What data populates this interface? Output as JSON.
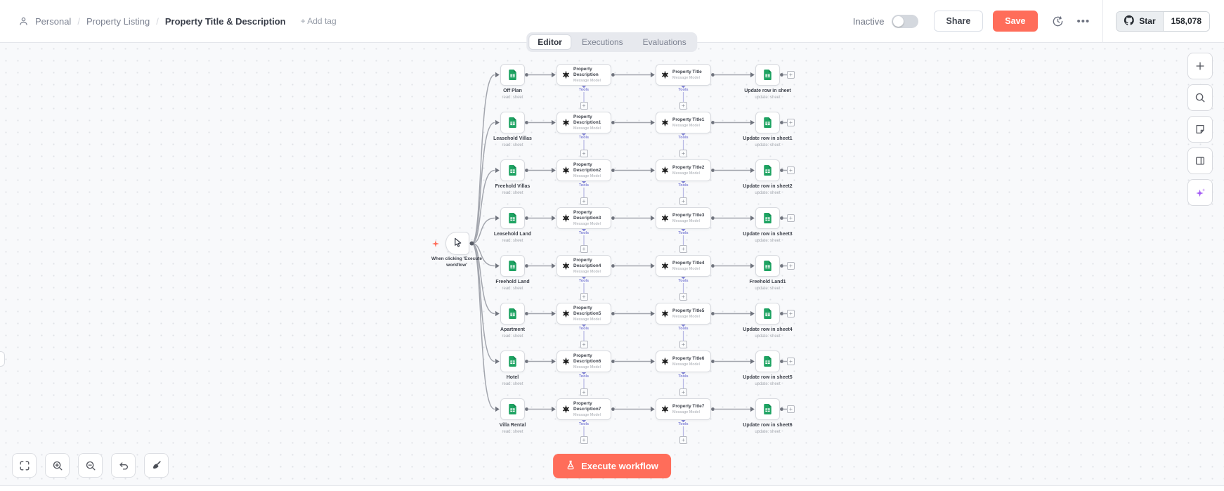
{
  "header": {
    "breadcrumb": {
      "owner_icon": "person-icon",
      "owner": "Personal",
      "project": "Property Listing",
      "workflow": "Property Title & Description",
      "add_tag": "+ Add tag"
    },
    "activation": {
      "label": "Inactive",
      "enabled": false
    },
    "share_label": "Share",
    "save_label": "Save",
    "history_icon": "history-icon",
    "more_icon": "more-dots-icon",
    "github": {
      "icon": "github-icon",
      "star_label": "Star",
      "star_count": "158,078"
    }
  },
  "tabs": [
    {
      "label": "Editor",
      "active": true
    },
    {
      "label": "Executions",
      "active": false
    },
    {
      "label": "Evaluations",
      "active": false
    }
  ],
  "workflow": {
    "trigger": {
      "label": "When clicking 'Execute workflow'",
      "icon": "cursor-icon"
    },
    "tools_connector_label": "Tools",
    "model_subtitle": "Message Model",
    "read_subtitle": "read: sheet",
    "update_subtitle": "update: sheet",
    "source_icon": "google-sheets-icon",
    "ai_icon": "openai-icon",
    "update_icon": "google-sheets-icon",
    "rows": [
      {
        "source": "Off Plan",
        "description": "Property Description",
        "title": "Property Title",
        "update": "Update row in sheet"
      },
      {
        "source": "Leasehold Villas",
        "description": "Property Description1",
        "title": "Property Title1",
        "update": "Update row in sheet1"
      },
      {
        "source": "Freehold Villas",
        "description": "Property Description2",
        "title": "Property Title2",
        "update": "Update row in sheet2"
      },
      {
        "source": "Leasehold Land",
        "description": "Property Description3",
        "title": "Property Title3",
        "update": "Update row in sheet3"
      },
      {
        "source": "Freehold Land",
        "description": "Property Description4",
        "title": "Property Title4",
        "update": "Freehold Land1"
      },
      {
        "source": "Apartment",
        "description": "Property Description5",
        "title": "Property Title5",
        "update": "Update row in sheet4"
      },
      {
        "source": "Hotel",
        "description": "Property Description6",
        "title": "Property Title6",
        "update": "Update row in sheet5"
      },
      {
        "source": "Villa Rental",
        "description": "Property Description7",
        "title": "Property Title7",
        "update": "Update row in sheet6"
      }
    ]
  },
  "canvas_controls": [
    {
      "name": "fit-view",
      "icon": "fit-view-icon"
    },
    {
      "name": "zoom-in",
      "icon": "zoom-in-icon"
    },
    {
      "name": "zoom-out",
      "icon": "zoom-out-icon"
    },
    {
      "name": "undo",
      "icon": "undo-icon"
    },
    {
      "name": "tidy-up",
      "icon": "tidy-up-icon"
    }
  ],
  "side_toolbar": [
    {
      "name": "add-node",
      "icon": "plus-icon"
    },
    {
      "name": "search",
      "icon": "search-icon"
    },
    {
      "name": "sticky-note",
      "icon": "sticky-note-icon"
    },
    {
      "name": "layout",
      "icon": "layout-panel-icon"
    },
    {
      "name": "ai-assistant",
      "icon": "ai-sparkles-icon"
    }
  ],
  "execute_button": {
    "label": "Execute workflow",
    "icon": "flask-icon"
  },
  "colors": {
    "accent": "#ff6d5a",
    "ai_connector": "#8486d8",
    "ai_connector_line": "#b4b5e3",
    "sheets_green": "#1ea362",
    "wire": "#a3a6ae",
    "endpoint": "#70747e",
    "canvas_dot": "#e0e2e7"
  }
}
